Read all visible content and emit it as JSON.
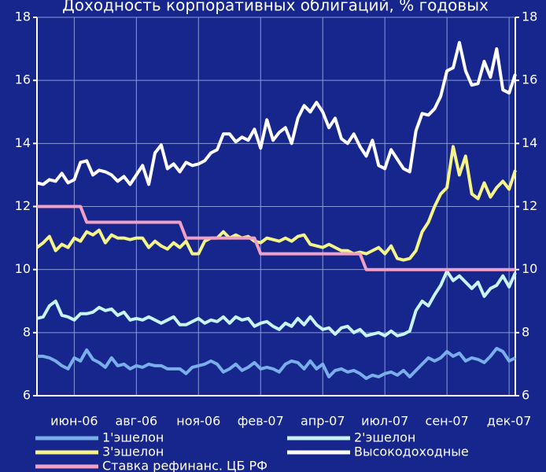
{
  "chart_data": {
    "type": "line",
    "title": "Доходность корпоративных облигаций, % годовых",
    "categories": [
      null,
      null,
      null,
      null,
      null,
      null,
      "июн-06",
      null,
      null,
      null,
      null,
      null,
      null,
      null,
      null,
      null,
      "авг-06",
      null,
      null,
      null,
      null,
      null,
      null,
      null,
      null,
      null,
      "ноя-06",
      null,
      null,
      null,
      null,
      null,
      null,
      null,
      null,
      null,
      "фев-07",
      null,
      null,
      null,
      null,
      null,
      null,
      null,
      null,
      null,
      "апр-07",
      null,
      null,
      null,
      null,
      null,
      null,
      null,
      null,
      null,
      "июл-07",
      null,
      null,
      null,
      null,
      null,
      null,
      null,
      null,
      null,
      "сен-07",
      null,
      null,
      null,
      null,
      null,
      null,
      null,
      null,
      null,
      "дек-07",
      null
    ],
    "series": [
      {
        "name": "1'эшелон",
        "color": "#7aaee8",
        "values": [
          7.25,
          7.25,
          7.2,
          7.1,
          6.95,
          6.85,
          7.2,
          7.1,
          7.45,
          7.15,
          7.05,
          6.9,
          7.2,
          6.95,
          7.0,
          6.85,
          6.95,
          6.9,
          7.0,
          6.95,
          6.95,
          6.85,
          6.85,
          6.85,
          6.7,
          6.9,
          6.95,
          7.0,
          7.1,
          7.0,
          6.75,
          6.85,
          7.0,
          6.8,
          6.9,
          7.05,
          6.85,
          6.9,
          6.85,
          6.75,
          7.0,
          7.1,
          7.05,
          6.85,
          7.1,
          6.85,
          7.0,
          6.6,
          6.8,
          6.85,
          6.75,
          6.8,
          6.7,
          6.55,
          6.65,
          6.6,
          6.7,
          6.75,
          6.65,
          6.8,
          6.6,
          6.8,
          7.0,
          7.2,
          7.1,
          7.2,
          7.4,
          7.25,
          7.35,
          7.1,
          7.2,
          7.15,
          7.05,
          7.25,
          7.5,
          7.4,
          7.1,
          7.2
        ]
      },
      {
        "name": "2'эшелон",
        "color": "#c8f4f4",
        "values": [
          8.45,
          8.5,
          8.85,
          9.0,
          8.55,
          8.5,
          8.4,
          8.6,
          8.6,
          8.65,
          8.8,
          8.7,
          8.75,
          8.55,
          8.65,
          8.4,
          8.45,
          8.4,
          8.5,
          8.4,
          8.3,
          8.4,
          8.5,
          8.25,
          8.25,
          8.35,
          8.45,
          8.3,
          8.4,
          8.35,
          8.5,
          8.3,
          8.5,
          8.4,
          8.45,
          8.2,
          8.3,
          8.35,
          8.2,
          8.1,
          8.3,
          8.2,
          8.45,
          8.25,
          8.5,
          8.25,
          8.1,
          8.15,
          7.95,
          8.15,
          8.2,
          8.0,
          8.1,
          7.9,
          7.95,
          8.0,
          7.9,
          8.05,
          7.9,
          7.95,
          8.05,
          8.7,
          9.0,
          8.85,
          9.2,
          9.5,
          9.95,
          9.65,
          9.8,
          9.6,
          9.4,
          9.6,
          9.15,
          9.4,
          9.5,
          9.8,
          9.45,
          9.9
        ]
      },
      {
        "name": "3'эшелон",
        "color": "#f4f488",
        "values": [
          10.7,
          10.85,
          11.05,
          10.6,
          10.8,
          10.7,
          11.0,
          10.9,
          11.2,
          11.1,
          11.25,
          10.85,
          11.1,
          11.0,
          11.0,
          10.95,
          11.0,
          11.0,
          10.7,
          10.9,
          10.75,
          10.65,
          10.85,
          10.7,
          10.9,
          10.5,
          10.5,
          10.9,
          11.0,
          11.0,
          11.2,
          11.0,
          11.1,
          11.0,
          11.05,
          10.9,
          10.85,
          11.0,
          10.95,
          10.9,
          11.0,
          10.9,
          11.05,
          11.1,
          10.8,
          10.75,
          10.7,
          10.8,
          10.7,
          10.6,
          10.6,
          10.5,
          10.55,
          10.5,
          10.6,
          10.7,
          10.5,
          10.75,
          10.35,
          10.3,
          10.35,
          10.6,
          11.2,
          11.5,
          12.0,
          12.4,
          12.6,
          13.9,
          13.0,
          13.6,
          12.4,
          12.25,
          12.75,
          12.3,
          12.6,
          12.8,
          12.55,
          13.15
        ]
      },
      {
        "name": "Высокодоходные",
        "color": "#ffffff",
        "values": [
          12.75,
          12.7,
          12.85,
          12.8,
          13.05,
          12.75,
          12.85,
          13.4,
          13.45,
          13.0,
          13.15,
          13.1,
          13.0,
          12.8,
          12.95,
          12.7,
          13.0,
          13.3,
          12.7,
          13.7,
          13.95,
          13.2,
          13.35,
          13.1,
          13.4,
          13.3,
          13.35,
          13.45,
          13.7,
          13.8,
          14.3,
          14.3,
          14.05,
          14.2,
          14.1,
          14.45,
          13.85,
          14.75,
          14.1,
          14.35,
          14.5,
          14.0,
          14.8,
          15.2,
          15.0,
          15.3,
          15.0,
          14.5,
          14.8,
          14.15,
          14.0,
          14.3,
          13.9,
          13.6,
          14.1,
          13.3,
          13.2,
          13.8,
          13.5,
          13.2,
          13.1,
          14.4,
          14.95,
          14.9,
          15.1,
          15.5,
          16.3,
          16.4,
          17.2,
          16.3,
          15.85,
          15.9,
          16.6,
          16.1,
          17.0,
          15.7,
          15.6,
          16.2
        ]
      },
      {
        "name": "Ставка рефинанс. ЦБ РФ",
        "color": "#f0a0c4",
        "values": [
          12,
          12,
          12,
          12,
          12,
          12,
          12,
          12,
          11.5,
          11.5,
          11.5,
          11.5,
          11.5,
          11.5,
          11.5,
          11.5,
          11.5,
          11.5,
          11.5,
          11.5,
          11.5,
          11.5,
          11.5,
          11.5,
          11,
          11,
          11,
          11,
          11,
          11,
          11,
          11,
          11,
          11,
          11,
          11,
          10.5,
          10.5,
          10.5,
          10.5,
          10.5,
          10.5,
          10.5,
          10.5,
          10.5,
          10.5,
          10.5,
          10.5,
          10.5,
          10.5,
          10.5,
          10.5,
          10.5,
          10,
          10,
          10,
          10,
          10,
          10,
          10,
          10,
          10,
          10,
          10,
          10,
          10,
          10,
          10,
          10,
          10,
          10,
          10,
          10,
          10,
          10,
          10,
          10,
          10
        ]
      }
    ],
    "ylim": [
      6,
      18
    ],
    "yticks": [
      6,
      8,
      10,
      12,
      14,
      16,
      18
    ],
    "grid": true
  }
}
